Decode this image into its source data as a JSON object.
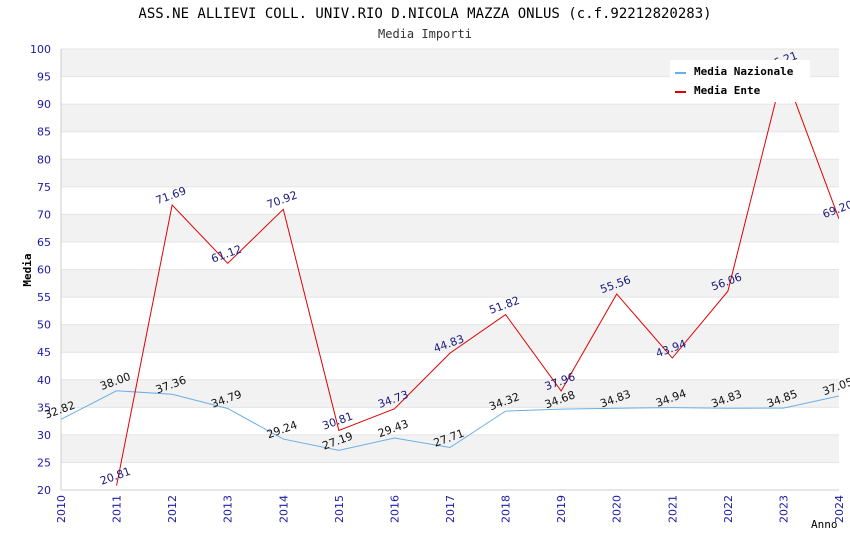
{
  "title": "ASS.NE ALLIEVI COLL. UNIV.RIO D.NICOLA MAZZA ONLUS (c.f.92212820283)",
  "subtitle": "Media Importi",
  "chart_data": {
    "type": "line",
    "title": "ASS.NE ALLIEVI COLL. UNIV.RIO D.NICOLA MAZZA ONLUS (c.f.92212820283)",
    "subtitle": "Media Importi",
    "xlabel": "Anno",
    "ylabel": "Media",
    "ylim": [
      20,
      100
    ],
    "yticks": [
      "20",
      "25",
      "30",
      "35",
      "40",
      "45",
      "50",
      "55",
      "60",
      "65",
      "70",
      "75",
      "80",
      "85",
      "90",
      "95",
      "100"
    ],
    "categories": [
      "2010",
      "2011",
      "2012",
      "2013",
      "2014",
      "2015",
      "2016",
      "2017",
      "2018",
      "2019",
      "2020",
      "2021",
      "2022",
      "2023",
      "2024"
    ],
    "series": [
      {
        "name": "Media Nazionale",
        "color": "#6aaee8",
        "values": [
          32.82,
          38.0,
          37.36,
          34.79,
          29.24,
          27.19,
          29.43,
          27.71,
          34.32,
          34.68,
          34.83,
          34.94,
          34.83,
          34.85,
          37.05
        ],
        "labels": [
          "32.82",
          "38.00",
          "37.36",
          "34.79",
          "29.24",
          "27.19",
          "29.43",
          "27.71",
          "34.32",
          "34.68",
          "34.83",
          "34.94",
          "34.83",
          "34.85",
          "37.05"
        ]
      },
      {
        "name": "Media Ente",
        "color": "#e00000",
        "values": [
          null,
          20.81,
          71.69,
          61.12,
          70.92,
          30.81,
          34.73,
          44.83,
          51.82,
          37.96,
          55.56,
          43.94,
          56.06,
          96.21,
          69.2
        ],
        "labels": [
          null,
          "20.81",
          "71.69",
          "61.12",
          "70.92",
          "30.81",
          "34.73",
          "44.83",
          "51.82",
          "37.96",
          "55.56",
          "43.94",
          "56.06",
          "96.21",
          "69.20"
        ]
      }
    ],
    "grid": true,
    "legend": "top-right"
  }
}
